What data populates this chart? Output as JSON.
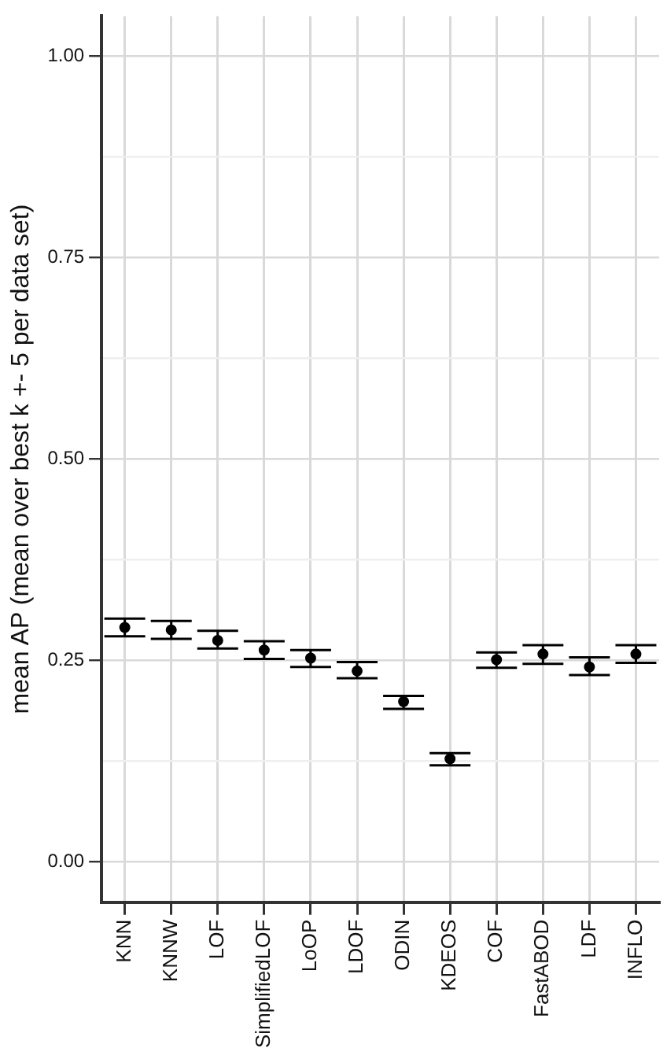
{
  "chart_data": {
    "type": "scatter",
    "ylabel": "mean AP (mean over best k +- 5 per data set)",
    "categories": [
      "KNN",
      "KNNW",
      "LOF",
      "SimplifiedLOF",
      "LoOP",
      "LDOF",
      "ODIN",
      "KDEOS",
      "COF",
      "FastABOD",
      "LDF",
      "INFLO"
    ],
    "values": [
      0.291,
      0.288,
      0.275,
      0.263,
      0.253,
      0.237,
      0.199,
      0.128,
      0.251,
      0.258,
      0.242,
      0.258
    ],
    "errors": [
      [
        0.28,
        0.302
      ],
      [
        0.277,
        0.299
      ],
      [
        0.265,
        0.287
      ],
      [
        0.252,
        0.274
      ],
      [
        0.242,
        0.263
      ],
      [
        0.228,
        0.248
      ],
      [
        0.19,
        0.206
      ],
      [
        0.12,
        0.135
      ],
      [
        0.241,
        0.26
      ],
      [
        0.246,
        0.269
      ],
      [
        0.232,
        0.254
      ],
      [
        0.247,
        0.269
      ]
    ],
    "color": "#000000",
    "marker": "circle",
    "grid": true,
    "ylim": [
      -0.05,
      1.05
    ],
    "yticks": [
      {
        "value": 0,
        "label": "0.00"
      },
      {
        "value": 0.125,
        "label": null
      },
      {
        "value": 0.25,
        "label": "0.25"
      },
      {
        "value": 0.375,
        "label": null
      },
      {
        "value": 0.5,
        "label": "0.50"
      },
      {
        "value": 0.625,
        "label": null
      },
      {
        "value": 0.75,
        "label": "0.75"
      },
      {
        "value": 0.875,
        "label": null
      },
      {
        "value": 1,
        "label": "1.00"
      }
    ]
  }
}
